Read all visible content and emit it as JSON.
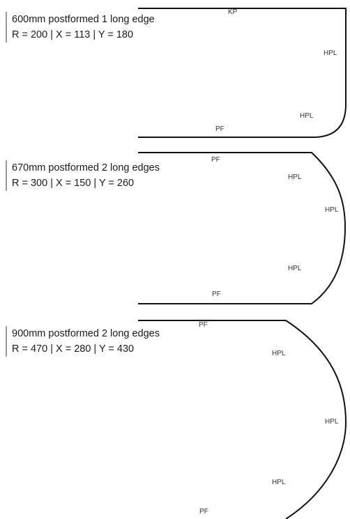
{
  "panels": [
    {
      "title": "600mm postformed 1 long edge",
      "specs": "R = 200 | X = 113 | Y = 180",
      "edge_labels": {
        "top": "KP",
        "curve_upper": "HPL",
        "curve_lower": "HPL",
        "bottom": "PF"
      }
    },
    {
      "title": "670mm postformed 2 long edges",
      "specs": "R = 300 | X = 150 | Y = 260",
      "edge_labels": {
        "top": "PF",
        "curve_upper": "HPL",
        "curve_middle": "HPL",
        "curve_lower": "HPL",
        "bottom": "PF"
      }
    },
    {
      "title": "900mm postformed 2 long edges",
      "specs": "R = 470 | X = 280 | Y = 430",
      "edge_labels": {
        "top": "PF",
        "curve_upper": "HPL",
        "curve_middle": "HPL",
        "curve_lower": "HPL",
        "bottom": "PF"
      }
    }
  ],
  "colors": {
    "outline": "#111111",
    "caption_rule": "#9a9a9a",
    "text": "#1a1a1a",
    "label": "#333333"
  }
}
